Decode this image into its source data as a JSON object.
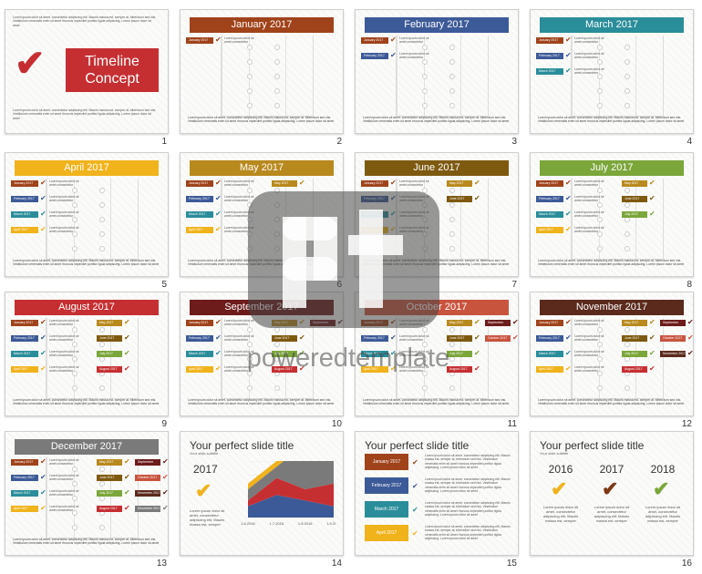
{
  "lorem_short": "Lorem ipsum dolor sit amet consectetur",
  "footer_text": "Lorem ipsum dolor sit amet, consectetur adipiscing elit. Mauris massa est, semper at, bibendum sed nisi. Vestibulum venenatis enim sit amet rhoncus imperdiet portitor ligula adipiscing. Lorem ipsum dolor sit amet",
  "slide_numbers": [
    "1",
    "2",
    "3",
    "4",
    "5",
    "6",
    "7",
    "8",
    "9",
    "10",
    "11",
    "12",
    "13",
    "14",
    "15",
    "16"
  ],
  "cover": {
    "title_line1": "Timeline",
    "title_line2": "Concept",
    "color": "#c62f32"
  },
  "month_colors": {
    "January": "#a0431b",
    "February": "#3d5a98",
    "March": "#2a8d9a",
    "April": "#f0b31c",
    "May": "#b8891d",
    "June": "#7e5a10",
    "July": "#7ba63a",
    "August": "#c62f32",
    "September": "#6d1b1b",
    "October": "#c9543e",
    "November": "#5b2a1d",
    "December": "#7a7a7a"
  },
  "month_labels": {
    "January": "January 2017",
    "February": "February 2017",
    "March": "March 2017",
    "April": "April 2017",
    "May": "May 2017",
    "June": "June 2017",
    "July": "July 2017",
    "August": "August 2017",
    "September": "September 2017",
    "October": "October 2017",
    "November": "November 2017",
    "December": "December 2017"
  },
  "slides": [
    {
      "month": "January",
      "headers": [
        "January 2017"
      ]
    },
    {
      "month": "February",
      "headers": [
        "February 2017"
      ]
    },
    {
      "month": "March",
      "headers": [
        "March 2017"
      ]
    },
    {
      "month": "April",
      "headers": [
        "April 2017"
      ]
    },
    {
      "month": "May",
      "headers": [
        "May 2017"
      ]
    },
    {
      "month": "June",
      "headers": [
        "June 2017"
      ]
    },
    {
      "month": "July",
      "headers": [
        "July 2017"
      ]
    },
    {
      "month": "August",
      "headers": [
        "August 2017"
      ]
    },
    {
      "month": "September",
      "headers": [
        "September 2017"
      ]
    },
    {
      "month": "October",
      "headers": [
        "October 2017"
      ]
    },
    {
      "month": "November",
      "headers": [
        "November 2017"
      ]
    },
    {
      "month": "December",
      "headers": [
        "December 2017"
      ]
    }
  ],
  "slide14": {
    "title": "Your perfect slide title",
    "subtitle": "Your slide subtitle",
    "year": "2017",
    "caption": "Lorem ipsum dolor sit amet, consectetur adipiscing elit. Mauris massa est, semper",
    "chart_data": {
      "type": "area",
      "categories": [
        "1.6.2016",
        "1.7.2016",
        "1.8.2016",
        "1.9.2016"
      ],
      "series": [
        {
          "values": [
            2,
            4,
            3,
            2
          ],
          "color": "#3d5a98"
        },
        {
          "values": [
            1,
            3,
            2,
            4
          ],
          "color": "#c62f32"
        },
        {
          "values": [
            2,
            2,
            8,
            5
          ],
          "color": "#7a7a7a"
        },
        {
          "values": [
            1,
            1,
            2,
            6
          ],
          "color": "#f0b31c"
        }
      ],
      "ylim": [
        0,
        10
      ]
    }
  },
  "slide15": {
    "title": "Your perfect slide title",
    "items": [
      "January 2017",
      "February 2017",
      "March 2017",
      "April 2017"
    ]
  },
  "slide16": {
    "title": "Your perfect slide title",
    "subtitle": "Your slide subtitle",
    "years": [
      "2016",
      "2017",
      "2018"
    ],
    "tick_colors": [
      "#f0b31c",
      "#7e3a16",
      "#7ba63a"
    ],
    "caption": "Lorem ipsum dolor sit amet, consectetur adipiscing elit. Mauris massa est, semper"
  },
  "watermark": {
    "brand": "poweredtemplate",
    "mark": "pt"
  }
}
